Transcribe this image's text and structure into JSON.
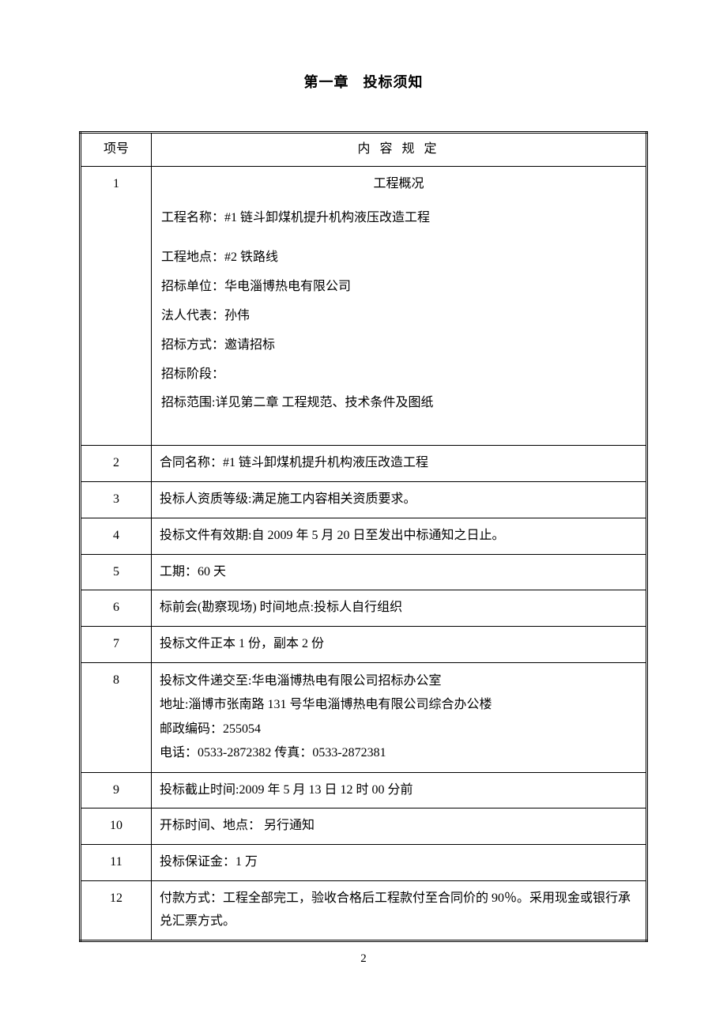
{
  "page": {
    "number": "2",
    "background_color": "#ffffff",
    "text_color": "#000000",
    "base_font_size": 16,
    "title_font_size": 18
  },
  "chapter": {
    "number": "第一章",
    "title": "投标须知"
  },
  "table": {
    "headers": {
      "col1": "项号",
      "col2": "内 容 规 定"
    },
    "rows": [
      {
        "num": "1",
        "heading": "工程概况",
        "lines": [
          "工程名称：#1 链斗卸煤机提升机构液压改造工程",
          "工程地点：#2 铁路线",
          "招标单位：华电淄博热电有限公司",
          "法人代表：孙伟",
          "招标方式：邀请招标",
          "招标阶段：",
          "招标范围:详见第二章  工程规范、技术条件及图纸"
        ]
      },
      {
        "num": "2",
        "content": "合同名称：#1 链斗卸煤机提升机构液压改造工程"
      },
      {
        "num": "3",
        "content": "投标人资质等级:满足施工内容相关资质要求。"
      },
      {
        "num": "4",
        "content": "投标文件有效期:自 2009 年 5 月 20 日至发出中标通知之日止。"
      },
      {
        "num": "5",
        "content": "工期：60 天"
      },
      {
        "num": "6",
        "content": "标前会(勘察现场) 时间地点:投标人自行组织"
      },
      {
        "num": "7",
        "content": "投标文件正本 1 份，副本 2 份"
      },
      {
        "num": "8",
        "lines": [
          "投标文件递交至:华电淄博热电有限公司招标办公室",
          "地址:淄博市张南路 131 号华电淄博热电有限公司综合办公楼",
          "邮政编码：255054",
          "电话：0533-2872382   传真：0533-2872381"
        ]
      },
      {
        "num": "9",
        "content": "投标截止时间:2009 年 5 月 13 日 12 时 00 分前"
      },
      {
        "num": "10",
        "content": "开标时间、地点：  另行通知"
      },
      {
        "num": "11",
        "content": "投标保证金：1 万"
      },
      {
        "num": "12",
        "content": "付款方式：工程全部完工，验收合格后工程款付至合同价的 90％。采用现金或银行承兑汇票方式。"
      }
    ]
  }
}
